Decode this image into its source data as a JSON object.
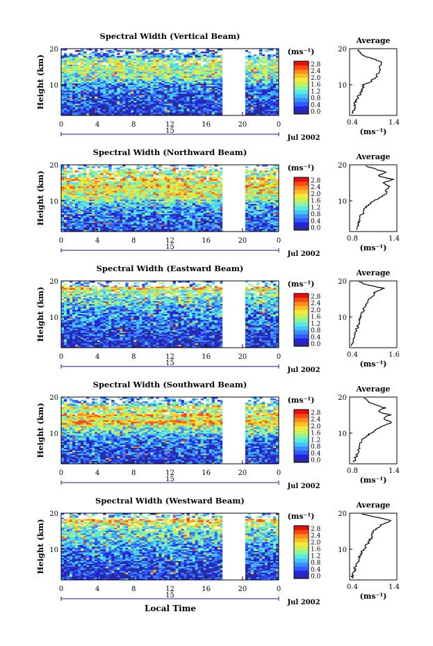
{
  "figure": {
    "x_axis_title": "Local Time",
    "y_axis_title": "Height (km)",
    "date_label": "Jul 2002",
    "day_label": "15",
    "unit_label": "(ms⁻¹)",
    "average_title": "Average",
    "average_xlabel": "(ms⁻¹)"
  },
  "chart_data": [
    {
      "type": "heatmap",
      "title": "Spectral Width (Vertical Beam)",
      "x_ticks": [
        "0",
        "4",
        "8",
        "12",
        "16",
        "20",
        "0"
      ],
      "y_ticks": [
        "20",
        "10"
      ],
      "colorbar_ticks": [
        "2.8",
        "2.4",
        "2.0",
        "1.6",
        "1.2",
        "0.8",
        "0.4",
        "0.0"
      ],
      "xlim": [
        0,
        24
      ],
      "ylim": [
        1.5,
        20
      ],
      "data_gap_hours": [
        17.8,
        20.2
      ],
      "mean_profile": {
        "xlim": [
          0.4,
          1.4
        ],
        "x_ticks": [
          "0.4",
          "1.4"
        ],
        "y_ticks": [
          "20",
          "10"
        ],
        "height_km": [
          2,
          3,
          4,
          5,
          6,
          7,
          8,
          9,
          10,
          11,
          12,
          13,
          14,
          15,
          16,
          17,
          18,
          19,
          20
        ],
        "width_ms": [
          0.45,
          0.5,
          0.5,
          0.52,
          0.55,
          0.6,
          0.65,
          0.68,
          0.7,
          0.85,
          0.95,
          1.0,
          1.05,
          1.05,
          1.1,
          0.95,
          0.7,
          0.6,
          0.6
        ]
      }
    },
    {
      "type": "heatmap",
      "title": "Spectral Width (Northward Beam)",
      "x_ticks": [
        "0",
        "4",
        "8",
        "12",
        "16",
        "20",
        "0"
      ],
      "y_ticks": [
        "20",
        "10"
      ],
      "colorbar_ticks": [
        "2.8",
        "2.4",
        "2.0",
        "1.6",
        "1.2",
        "0.8",
        "0.4",
        "0.0"
      ],
      "xlim": [
        0,
        24
      ],
      "ylim": [
        1.5,
        20
      ],
      "data_gap_hours": [
        17.8,
        20.2
      ],
      "mean_profile": {
        "xlim": [
          0.4,
          1.4
        ],
        "x_ticks": [
          "0.8",
          "1.4"
        ],
        "y_ticks": [
          "20",
          "10"
        ],
        "height_km": [
          2,
          3,
          4,
          5,
          6,
          7,
          8,
          9,
          10,
          11,
          12,
          13,
          14,
          15,
          16,
          17,
          18,
          19,
          20
        ],
        "width_ms": [
          0.55,
          0.58,
          0.6,
          0.62,
          0.65,
          0.7,
          0.72,
          0.8,
          0.9,
          1.05,
          1.2,
          1.15,
          1.25,
          1.1,
          1.3,
          1.0,
          1.15,
          0.9,
          0.7
        ]
      }
    },
    {
      "type": "heatmap",
      "title": "Spectral Width (Eastward Beam)",
      "x_ticks": [
        "0",
        "4",
        "8",
        "12",
        "16",
        "20",
        "0"
      ],
      "y_ticks": [
        "20",
        "10"
      ],
      "colorbar_ticks": [
        "2.8",
        "2.4",
        "2.0",
        "1.6",
        "1.2",
        "0.8",
        "0.4",
        "0.0"
      ],
      "xlim": [
        0,
        24
      ],
      "ylim": [
        1.5,
        20
      ],
      "data_gap_hours": [
        17.8,
        20.2
      ],
      "mean_profile": {
        "xlim": [
          0.4,
          1.6
        ],
        "x_ticks": [
          "0.4",
          "1.6"
        ],
        "y_ticks": [
          "20",
          "10"
        ],
        "height_km": [
          2,
          3,
          4,
          5,
          6,
          7,
          8,
          9,
          10,
          11,
          12,
          13,
          14,
          15,
          16,
          17,
          18,
          19,
          20
        ],
        "width_ms": [
          0.45,
          0.47,
          0.5,
          0.52,
          0.55,
          0.6,
          0.62,
          0.65,
          0.68,
          0.72,
          0.75,
          0.8,
          0.85,
          0.9,
          1.0,
          1.05,
          1.25,
          0.8,
          0.6
        ]
      }
    },
    {
      "type": "heatmap",
      "title": "Spectral Width (Southward Beam)",
      "x_ticks": [
        "0",
        "4",
        "8",
        "12",
        "16",
        "20",
        "0"
      ],
      "y_ticks": [
        "20",
        "10"
      ],
      "colorbar_ticks": [
        "2.8",
        "2.4",
        "2.0",
        "1.6",
        "1.2",
        "0.8",
        "0.4",
        "0.0"
      ],
      "xlim": [
        0,
        24
      ],
      "ylim": [
        1.5,
        20
      ],
      "data_gap_hours": [
        17.8,
        20.2
      ],
      "mean_profile": {
        "xlim": [
          0.4,
          1.4
        ],
        "x_ticks": [
          "0.8",
          "1.4"
        ],
        "y_ticks": [
          "20",
          "10"
        ],
        "height_km": [
          2,
          3,
          4,
          5,
          6,
          7,
          8,
          9,
          10,
          11,
          12,
          13,
          14,
          15,
          16,
          17,
          18,
          19,
          20
        ],
        "width_ms": [
          0.5,
          0.52,
          0.55,
          0.58,
          0.6,
          0.62,
          0.65,
          0.75,
          0.85,
          0.95,
          1.1,
          1.3,
          1.1,
          1.25,
          1.0,
          1.15,
          0.9,
          0.75,
          0.7
        ]
      }
    },
    {
      "type": "heatmap",
      "title": "Spectral Width (Westward Beam)",
      "x_ticks": [
        "0",
        "4",
        "8",
        "12",
        "16",
        "20",
        "0"
      ],
      "y_ticks": [
        "20",
        "10"
      ],
      "colorbar_ticks": [
        "2.8",
        "2.4",
        "2.0",
        "1.6",
        "1.2",
        "0.8",
        "0.4",
        "0.0"
      ],
      "xlim": [
        0,
        24
      ],
      "ylim": [
        1.5,
        20
      ],
      "data_gap_hours": [
        17.8,
        20.2
      ],
      "mean_profile": {
        "xlim": [
          0.4,
          1.4
        ],
        "x_ticks": [
          "0.4",
          "1.4"
        ],
        "y_ticks": [
          "20",
          "10"
        ],
        "height_km": [
          2,
          3,
          4,
          5,
          6,
          7,
          8,
          9,
          10,
          11,
          12,
          13,
          14,
          15,
          16,
          17,
          18,
          19,
          20
        ],
        "width_ms": [
          0.45,
          0.47,
          0.5,
          0.52,
          0.55,
          0.58,
          0.6,
          0.65,
          0.7,
          0.75,
          0.8,
          0.85,
          0.88,
          0.9,
          1.0,
          1.1,
          1.3,
          0.9,
          0.6
        ]
      }
    }
  ],
  "colormap": [
    "#2a2a9a",
    "#2424e0",
    "#2e5cff",
    "#3c8cff",
    "#46c4ff",
    "#5aeadc",
    "#8ef4a0",
    "#c8f25a",
    "#f4ea3c",
    "#ffbe2a",
    "#ff8c1e",
    "#ff4a14",
    "#e01010"
  ]
}
